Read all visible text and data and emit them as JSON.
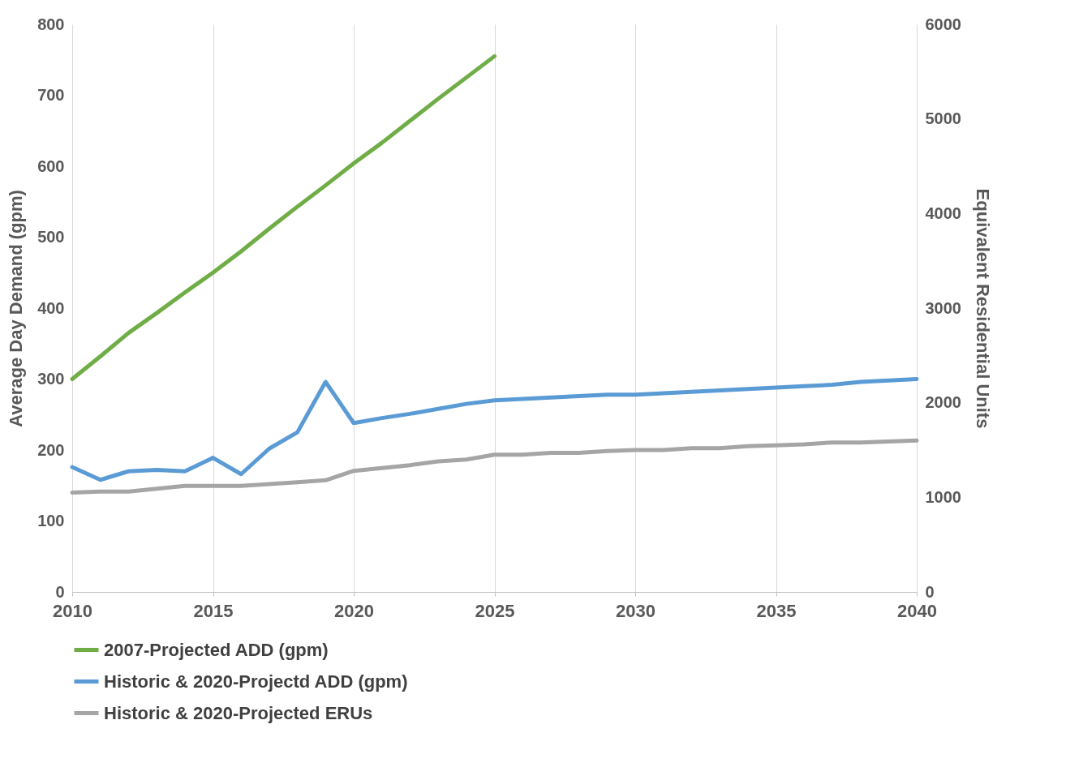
{
  "chart_data": {
    "type": "line",
    "ylabel": "Average Day Demand (gpm)",
    "y2label": "Equivalent Residential Units",
    "x": [
      2010,
      2011,
      2012,
      2013,
      2014,
      2015,
      2016,
      2017,
      2018,
      2019,
      2020,
      2021,
      2022,
      2023,
      2024,
      2025,
      2026,
      2027,
      2028,
      2029,
      2030,
      2031,
      2032,
      2033,
      2034,
      2035,
      2036,
      2037,
      2038,
      2039,
      2040
    ],
    "series": [
      {
        "name": "2007-Projected ADD (gpm)",
        "color": "#70ad47",
        "values": [
          300,
          332,
          365,
          393,
          422,
          450,
          480,
          512,
          543,
          573,
          604,
          633,
          664,
          695,
          725,
          755,
          null,
          null,
          null,
          null,
          null,
          null,
          null,
          null,
          null,
          null,
          null,
          null,
          null,
          null,
          null
        ]
      },
      {
        "name": "Historic & 2020-Projectd ADD (gpm)",
        "color": "#5b9bd5",
        "values": [
          176,
          158,
          170,
          172,
          170,
          189,
          166,
          202,
          225,
          296,
          238,
          245,
          251,
          258,
          265,
          270,
          272,
          274,
          276,
          278,
          278,
          280,
          282,
          284,
          286,
          288,
          290,
          292,
          296,
          298,
          300
        ]
      },
      {
        "name": "Historic & 2020-Projected ERUs",
        "color": "#a5a5a5",
        "axis": "y2",
        "values": [
          1050,
          1060,
          1060,
          1090,
          1120,
          1120,
          1120,
          1140,
          1160,
          1180,
          1280,
          1310,
          1340,
          1380,
          1400,
          1450,
          1450,
          1470,
          1470,
          1490,
          1500,
          1500,
          1520,
          1520,
          1540,
          1550,
          1560,
          1580,
          1580,
          1590,
          1600
        ]
      }
    ],
    "xlim": [
      2010,
      2040
    ],
    "xticks": [
      2010,
      2015,
      2020,
      2025,
      2030,
      2035,
      2040
    ],
    "ylim": [
      0,
      800
    ],
    "yticks": [
      0,
      100,
      200,
      300,
      400,
      500,
      600,
      700,
      800
    ],
    "y2lim": [
      0,
      6000
    ],
    "y2ticks": [
      0,
      1000,
      2000,
      3000,
      4000,
      5000,
      6000
    ],
    "grid": "x",
    "legend": "bottom",
    "marker": "none",
    "line_style": "solid"
  }
}
